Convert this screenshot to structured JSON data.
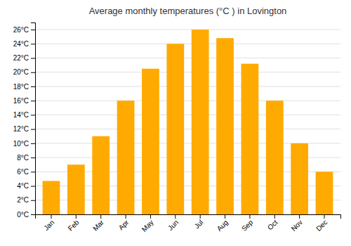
{
  "chart_data": {
    "type": "bar",
    "title": "Average monthly temperatures (°C ) in Lovington",
    "categories": [
      "Jan",
      "Feb",
      "Mar",
      "Apr",
      "May",
      "Jun",
      "Jul",
      "Aug",
      "Sep",
      "Oct",
      "Nov",
      "Dec"
    ],
    "values": [
      4.7,
      7.0,
      11.0,
      16.0,
      20.5,
      24.0,
      26.0,
      24.8,
      21.2,
      16.0,
      10.0,
      6.0
    ],
    "color": "#FFAA00",
    "ylim": [
      0,
      27
    ],
    "yticks": [
      {
        "value": 0,
        "label": "0°C"
      },
      {
        "value": 2,
        "label": "2°C"
      },
      {
        "value": 4,
        "label": "4°C"
      },
      {
        "value": 6,
        "label": "6°C"
      },
      {
        "value": 8,
        "label": "8°C"
      },
      {
        "value": 10,
        "label": "10°C"
      },
      {
        "value": 12,
        "label": "12°C"
      },
      {
        "value": 14,
        "label": "14°C"
      },
      {
        "value": 16,
        "label": "16°C"
      },
      {
        "value": 18,
        "label": "18°C"
      },
      {
        "value": 20,
        "label": "20°C"
      },
      {
        "value": 22,
        "label": "22°C"
      },
      {
        "value": 24,
        "label": "24°C"
      },
      {
        "value": 26,
        "label": "26°C"
      }
    ],
    "grid": true
  }
}
